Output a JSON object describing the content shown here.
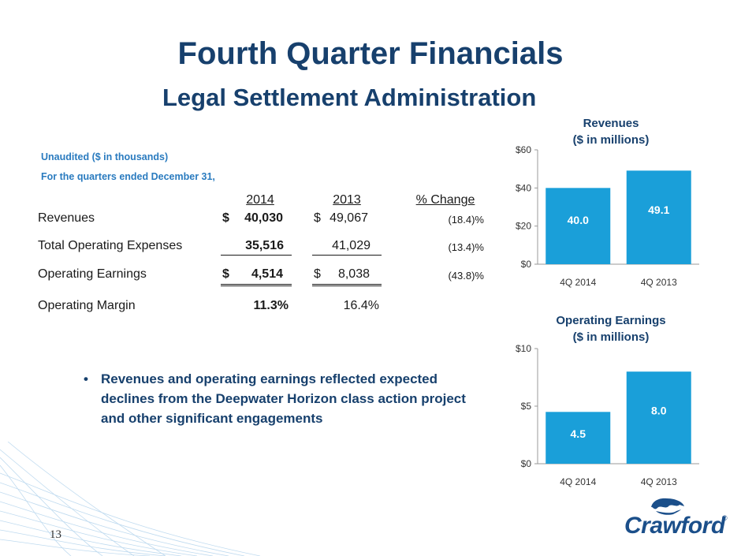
{
  "slide": {
    "title": "Fourth Quarter Financials",
    "subtitle": "Legal Settlement Administration",
    "note_line1": "Unaudited ($ in thousands)",
    "note_line2": "For the quarters ended December 31,",
    "page_number": "13",
    "logo_text": "Crawford",
    "logo_mark": "®"
  },
  "table": {
    "headers": [
      "2014",
      "2013",
      "% Change"
    ],
    "rows": [
      {
        "label": "Revenues",
        "cur_sym": "$",
        "v2014": "40,030",
        "prev_sym": "$",
        "v2013": "49,067",
        "change": "(18.4)%"
      },
      {
        "label": "Total Operating Expenses",
        "cur_sym": "",
        "v2014": "35,516",
        "prev_sym": "",
        "v2013": "41,029",
        "change": "(13.4)%"
      },
      {
        "label": "Operating Earnings",
        "cur_sym": "$",
        "v2014": "4,514",
        "prev_sym": "$",
        "v2013": "8,038",
        "change": "(43.8)%"
      },
      {
        "label": "Operating Margin",
        "cur_sym": "",
        "v2014": "11.3%",
        "prev_sym": "",
        "v2013": "16.4%",
        "change": ""
      }
    ]
  },
  "bullet": {
    "marker": "•",
    "text": "Revenues and operating earnings reflected expected declines from the Deepwater Horizon class action project and other significant engagements"
  },
  "chart_data": [
    {
      "type": "bar",
      "title": "Revenues",
      "subtitle": "($ in millions)",
      "categories": [
        "4Q 2014",
        "4Q 2013"
      ],
      "values": [
        40.0,
        49.1
      ],
      "value_labels": [
        "40.0",
        "49.1"
      ],
      "yticks": [
        "$0",
        "$20",
        "$40",
        "$60"
      ],
      "ytick_values": [
        0,
        20,
        40,
        60
      ],
      "ylim": [
        0,
        60
      ],
      "color": "#1a9fd9",
      "grid": false
    },
    {
      "type": "bar",
      "title": "Operating Earnings",
      "subtitle": "($ in millions)",
      "categories": [
        "4Q 2014",
        "4Q 2013"
      ],
      "values": [
        4.5,
        8.0
      ],
      "value_labels": [
        "4.5",
        "8.0"
      ],
      "yticks": [
        "$0",
        "$5",
        "$10"
      ],
      "ytick_values": [
        0,
        5,
        10
      ],
      "ylim": [
        0,
        10
      ],
      "color": "#1a9fd9",
      "grid": false
    }
  ]
}
